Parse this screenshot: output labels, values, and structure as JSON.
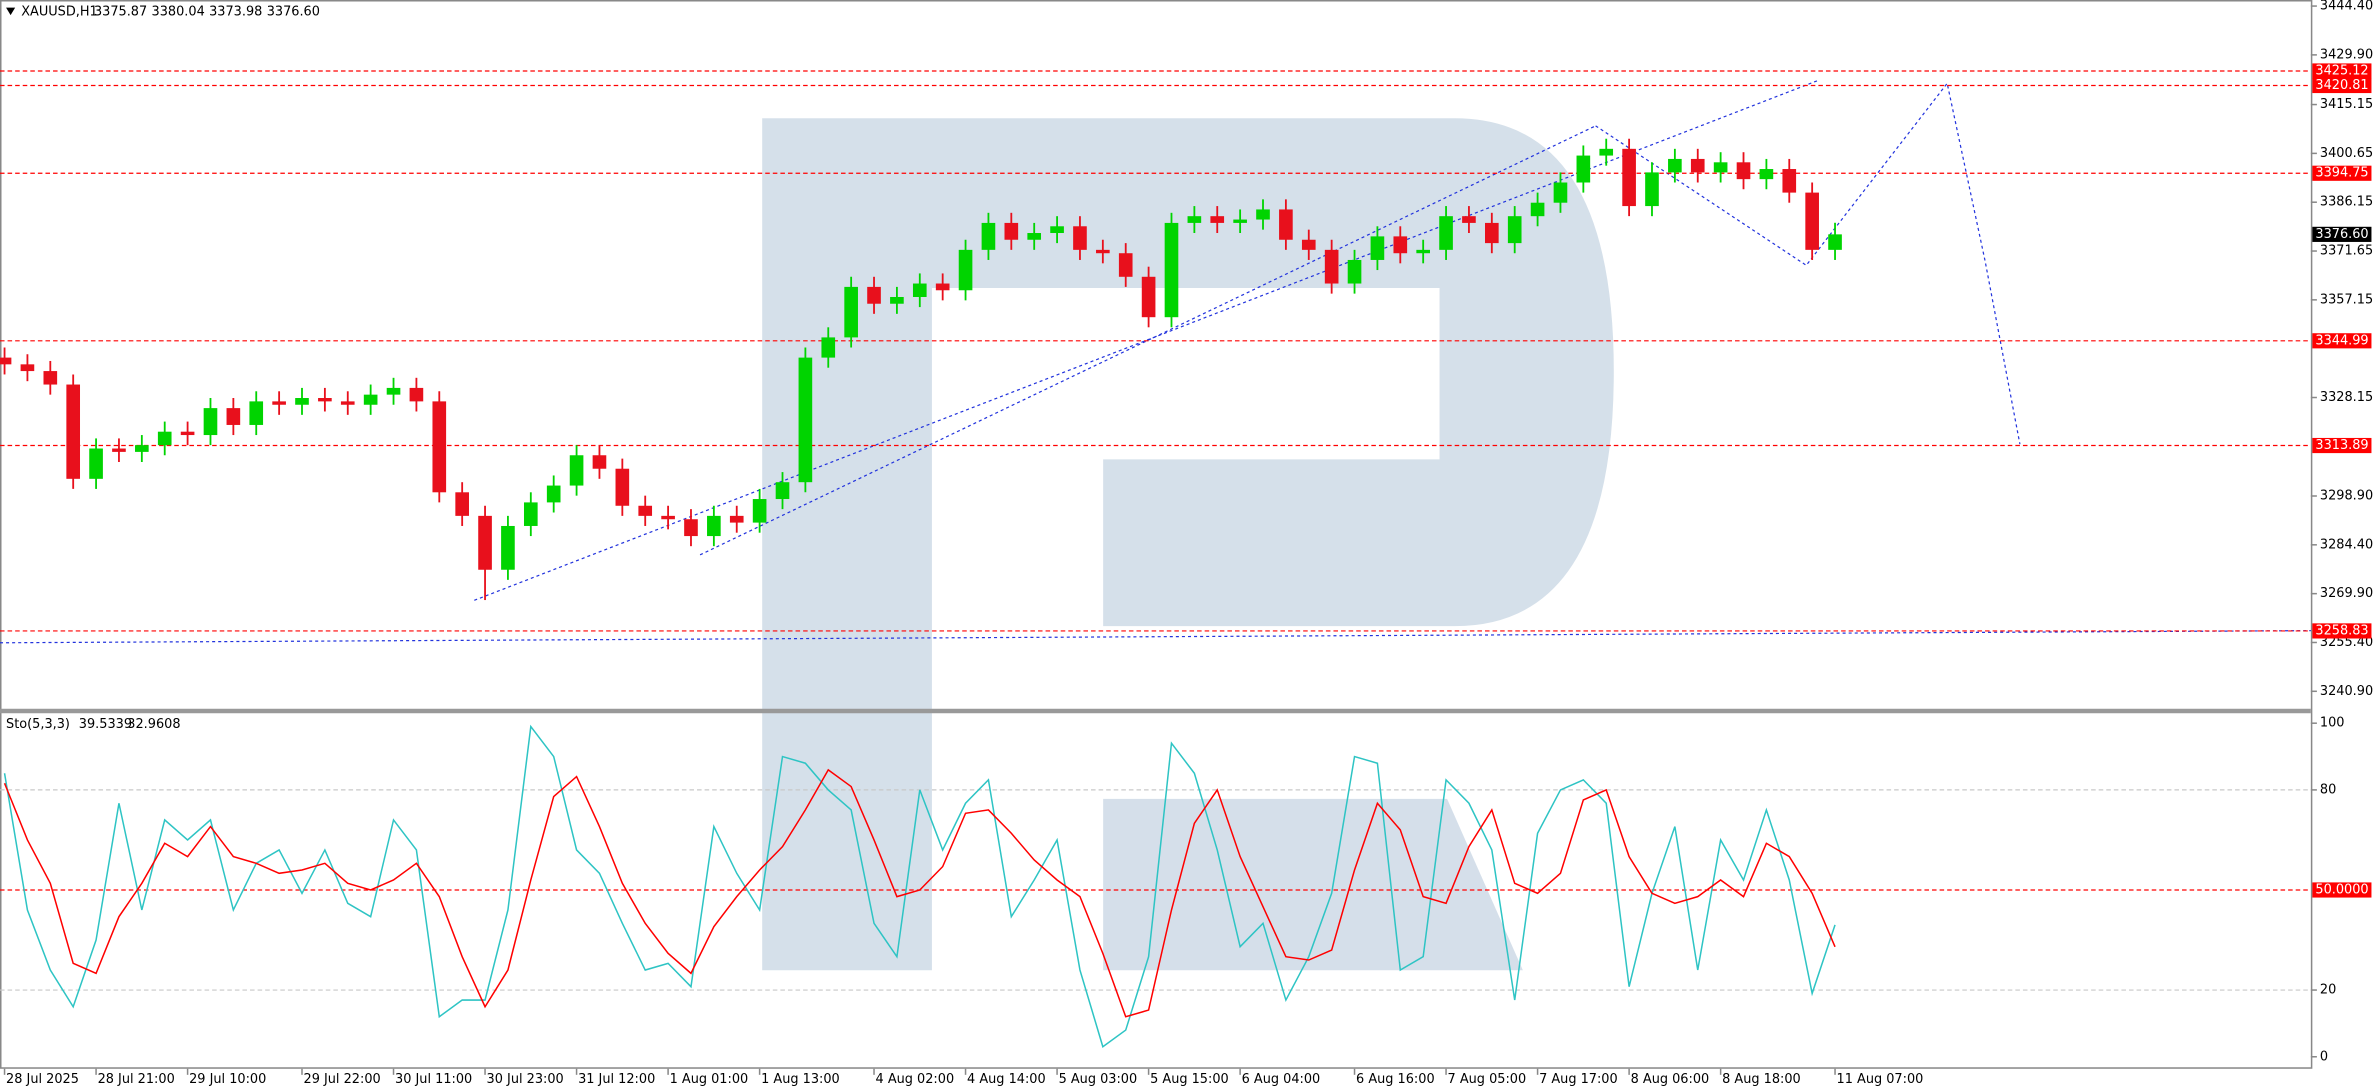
{
  "chart_data": [
    {
      "type": "candlestick",
      "title": "XAUUSD,H1",
      "last_bar": {
        "open": 3375.87,
        "high": 3380.04,
        "low": 3373.98,
        "close": {
          "value": 3376.6,
          "label": "3376.60"
        }
      },
      "categories": [
        "28 Jul 2025",
        null,
        null,
        null,
        "28 Jul 21:00",
        null,
        null,
        null,
        "29 Jul 10:00",
        null,
        null,
        null,
        null,
        "29 Jul 22:00",
        null,
        null,
        null,
        "30 Jul 11:00",
        null,
        null,
        null,
        "30 Jul 23:00",
        null,
        null,
        null,
        "31 Jul 12:00",
        null,
        null,
        null,
        "1 Aug 01:00",
        null,
        null,
        null,
        "1 Aug 13:00",
        null,
        null,
        null,
        null,
        "4 Aug 02:00",
        null,
        null,
        null,
        "4 Aug 14:00",
        null,
        null,
        null,
        "5 Aug 03:00",
        null,
        null,
        null,
        "5 Aug 15:00",
        null,
        null,
        null,
        "6 Aug 04:00",
        null,
        null,
        null,
        null,
        "6 Aug 16:00",
        null,
        null,
        null,
        "7 Aug 05:00",
        null,
        null,
        null,
        "7 Aug 17:00",
        null,
        null,
        null,
        "8 Aug 06:00",
        null,
        null,
        null,
        "8 Aug 18:00",
        null,
        null,
        null,
        null,
        "11 Aug 07:00"
      ],
      "open": [
        3340,
        3338,
        3336,
        3332,
        3304,
        3313,
        3312,
        3314,
        3318,
        3317,
        3325,
        3320,
        3327,
        3326,
        3328,
        3327,
        3326,
        3329,
        3331,
        3327,
        3300,
        3293,
        3277,
        3290,
        3297,
        3302,
        3311,
        3307,
        3296,
        3293,
        3292,
        3287,
        3293,
        3291,
        3298,
        3303,
        3340,
        3346,
        3361,
        3356,
        3358,
        3362,
        3360,
        3372,
        3380,
        3375,
        3377,
        3379,
        3372,
        3371,
        3364,
        3352,
        3380,
        3382,
        3380,
        3381,
        3384,
        3375,
        3372,
        3362,
        3369,
        3376,
        3371,
        3372,
        3382,
        3380,
        3374,
        3382,
        3386,
        3392,
        3400,
        3402,
        3385,
        3395,
        3399,
        3395,
        3398,
        3393,
        3396,
        3389,
        3372
      ],
      "high": [
        3343,
        3341,
        3339,
        3335,
        3316,
        3316,
        3317,
        3321,
        3321,
        3328,
        3328,
        3330,
        3330,
        3331,
        3331,
        3330,
        3332,
        3334,
        3334,
        3330,
        3303,
        3296,
        3293,
        3300,
        3305,
        3314,
        3314,
        3310,
        3299,
        3296,
        3295,
        3296,
        3296,
        3301,
        3306,
        3343,
        3349,
        3364,
        3364,
        3361,
        3365,
        3365,
        3375,
        3383,
        3383,
        3380,
        3382,
        3382,
        3375,
        3374,
        3367,
        3383,
        3385,
        3385,
        3384,
        3387,
        3387,
        3378,
        3375,
        3372,
        3379,
        3379,
        3375,
        3385,
        3385,
        3383,
        3385,
        3389,
        3395,
        3403,
        3405,
        3405,
        3398,
        3402,
        3402,
        3401,
        3401,
        3399,
        3399,
        3392,
        3380.04
      ],
      "low": [
        3335,
        3333,
        3329,
        3301,
        3301,
        3309,
        3309,
        3311,
        3314,
        3314,
        3317,
        3317,
        3323,
        3323,
        3324,
        3323,
        3323,
        3326,
        3324,
        3297,
        3290,
        3268,
        3274,
        3287,
        3294,
        3299,
        3304,
        3293,
        3290,
        3289,
        3284,
        3284,
        3288,
        3288,
        3295,
        3300,
        3337,
        3343,
        3353,
        3353,
        3355,
        3357,
        3357,
        3369,
        3372,
        3372,
        3374,
        3369,
        3368,
        3361,
        3349,
        3349,
        3377,
        3377,
        3377,
        3378,
        3372,
        3369,
        3359,
        3359,
        3366,
        3368,
        3368,
        3369,
        3377,
        3371,
        3371,
        3379,
        3383,
        3389,
        3397,
        3382,
        3382,
        3392,
        3392,
        3392,
        3390,
        3390,
        3386,
        3369,
        3369
      ],
      "close": [
        3338,
        3336,
        3332,
        3304,
        3313,
        3312,
        3314,
        3318,
        3317,
        3325,
        3320,
        3327,
        3326,
        3328,
        3327,
        3326,
        3329,
        3331,
        3327,
        3300,
        3293,
        3277,
        3290,
        3297,
        3302,
        3311,
        3307,
        3296,
        3293,
        3292,
        3287,
        3293,
        3291,
        3298,
        3303,
        3340,
        3346,
        3361,
        3356,
        3358,
        3362,
        3360,
        3372,
        3380,
        3375,
        3377,
        3379,
        3372,
        3371,
        3364,
        3352,
        3380,
        3382,
        3380,
        3381,
        3384,
        3375,
        3372,
        3362,
        3369,
        3376,
        3371,
        3372,
        3382,
        3380,
        3374,
        3382,
        3386,
        3392,
        3400,
        3402,
        3385,
        3395,
        3399,
        3395,
        3398,
        3393,
        3396,
        3389,
        3372,
        3376.6
      ],
      "up_color": "#00d400",
      "down_color": "#e8101c",
      "ylim": [
        3235.5,
        3446.2
      ],
      "yticks": [
        {
          "value": 3444.4,
          "label": "3444.40"
        },
        {
          "value": 3429.9,
          "label": "3429.90"
        },
        3415.15,
        3400.65,
        3386.15,
        3371.65,
        3357.15,
        3328.15,
        {
          "value": 3298.9,
          "label": "3298.90"
        },
        {
          "value": 3284.4,
          "label": "3284.40"
        },
        {
          "value": 3269.9,
          "label": "3269.90"
        },
        {
          "value": 3255.4,
          "label": "3255.40"
        },
        {
          "value": 3240.9,
          "label": "3240.90"
        }
      ],
      "levels": [
        3425.12,
        3420.81,
        3394.75,
        3344.99,
        3313.89,
        3258.83
      ],
      "level_color": "#ff0000",
      "current_price": {
        "value": 3376.6,
        "label": "3376.60"
      }
    },
    {
      "type": "line",
      "title": "Sto(5,3,3)",
      "series": [
        {
          "color": "#2ec4c4",
          "values": [
            85,
            44,
            26,
            15,
            35,
            76,
            44,
            71,
            65,
            71,
            44,
            58,
            62,
            49,
            62,
            46,
            42,
            71,
            62,
            12,
            17,
            17,
            44,
            99,
            90,
            62,
            55,
            40,
            26,
            28,
            21,
            69,
            55,
            44,
            90,
            88,
            80,
            74,
            40,
            30,
            80,
            62,
            76,
            83,
            42,
            53,
            65,
            26,
            3,
            8,
            30,
            94,
            85,
            62,
            33,
            40,
            17,
            30,
            49,
            90,
            88,
            26,
            30,
            83,
            76,
            62,
            17,
            67,
            80,
            83,
            76,
            21,
            49,
            69,
            26,
            65,
            53,
            74,
            53,
            19,
            39.5339
          ]
        },
        {
          "color": "#ff0000",
          "values": [
            82,
            65,
            52,
            28,
            25,
            42,
            52,
            64,
            60,
            69,
            60,
            58,
            55,
            56,
            58,
            52,
            50,
            53,
            58,
            48,
            30,
            15,
            26,
            53,
            78,
            84,
            69,
            52,
            40,
            31,
            25,
            39,
            48,
            56,
            63,
            74,
            86,
            81,
            65,
            48,
            50,
            57,
            73,
            74,
            67,
            59,
            53,
            48,
            31,
            12,
            14,
            44,
            70,
            80,
            60,
            45,
            30,
            29,
            32,
            56,
            76,
            68,
            48,
            46,
            63,
            74,
            52,
            49,
            55,
            77,
            80,
            60,
            49,
            46,
            48,
            53,
            48,
            64,
            60,
            49,
            32.9608
          ]
        }
      ],
      "ylim": [
        -3.6,
        103.2
      ],
      "yticks": [
        100,
        80,
        20,
        0
      ],
      "levels": [
        {
          "value": 80,
          "color": "#c8c8c8"
        },
        {
          "value": 50,
          "label": "50.0000",
          "color": "#ff0000"
        },
        {
          "value": 20,
          "color": "#c8c8c8"
        }
      ]
    }
  ]
}
